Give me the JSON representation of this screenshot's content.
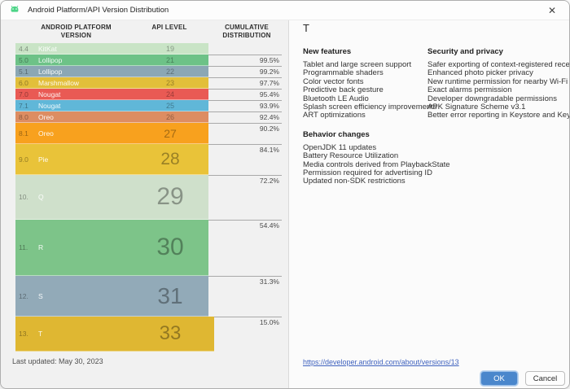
{
  "window": {
    "title": "Android Platform/API Version Distribution",
    "close_glyph": "✕"
  },
  "table": {
    "headers": {
      "platform": "ANDROID PLATFORM VERSION",
      "api": "API LEVEL",
      "cumulative": "CUMULATIVE DISTRIBUTION"
    },
    "rows": [
      {
        "version": "4.4",
        "name": "KitKat",
        "api": "19",
        "pct": "",
        "color": "#c9e4c6",
        "height": 14,
        "selected": false
      },
      {
        "version": "5.0",
        "name": "Lollipop",
        "api": "21",
        "pct": "99.5%",
        "color": "#6dc287",
        "height": 14,
        "selected": false
      },
      {
        "version": "5.1",
        "name": "Lollipop",
        "api": "22",
        "pct": "99.2%",
        "color": "#8ba7b4",
        "height": 14,
        "selected": false
      },
      {
        "version": "6.0",
        "name": "Marshmallow",
        "api": "23",
        "pct": "97.7%",
        "color": "#e2bf3a",
        "height": 14,
        "selected": false
      },
      {
        "version": "7.0",
        "name": "Nougat",
        "api": "24",
        "pct": "95.4%",
        "color": "#e95a54",
        "height": 14,
        "selected": false
      },
      {
        "version": "7.1",
        "name": "Nougat",
        "api": "25",
        "pct": "93.9%",
        "color": "#60b7d8",
        "height": 14,
        "selected": false
      },
      {
        "version": "8.0",
        "name": "Oreo",
        "api": "26",
        "pct": "92.4%",
        "color": "#dd8d62",
        "height": 14,
        "selected": false
      },
      {
        "version": "8.1",
        "name": "Oreo",
        "api": "27",
        "pct": "90.2%",
        "color": "#f8a11e",
        "height": 26,
        "selected": false
      },
      {
        "version": "9.0",
        "name": "Pie",
        "api": "28",
        "pct": "84.1%",
        "color": "#e9c339",
        "height": 38,
        "selected": false
      },
      {
        "version": "10.",
        "name": "Q",
        "api": "29",
        "pct": "72.2%",
        "color": "#cfe0cb",
        "height": 55,
        "selected": false
      },
      {
        "version": "11.",
        "name": "R",
        "api": "30",
        "pct": "54.4%",
        "color": "#7dc489",
        "height": 69,
        "selected": false
      },
      {
        "version": "12.",
        "name": "S",
        "api": "31",
        "pct": "31.3%",
        "color": "#92aab8",
        "height": 50,
        "selected": false
      },
      {
        "version": "13.",
        "name": "T",
        "api": "33",
        "pct": "15.0%",
        "color": "#dfb732",
        "height": 43,
        "selected": true
      }
    ],
    "last_updated": "Last updated: May 30, 2023"
  },
  "detail": {
    "title": "T",
    "sections": [
      {
        "heading": "New features",
        "column": 1,
        "items": [
          "Tablet and large screen support",
          "Programmable shaders",
          "Color vector fonts",
          "Predictive back gesture",
          "Bluetooth LE Audio",
          "Splash screen efficiency improvements",
          "ART optimizations"
        ]
      },
      {
        "heading": "Behavior changes",
        "column": 1,
        "items": [
          "OpenJDK 11 updates",
          "Battery Resource Utilization",
          "Media controls derived from PlaybackState",
          "Permission required for advertising ID",
          "Updated non-SDK restrictions"
        ]
      },
      {
        "heading": "Security and privacy",
        "column": 2,
        "items": [
          "Safer exporting of context-registered receivers",
          "Enhanced photo picker privacy",
          "New runtime permission for nearby Wi-Fi devices",
          "Exact alarms permission",
          "Developer downgradable permissions",
          "APK Signature Scheme v3.1",
          "Better error reporting in Keystore and KeyMint"
        ]
      }
    ],
    "link": "https://developer.android.com/about/versions/13"
  },
  "footer": {
    "ok_label": "OK",
    "cancel_label": "Cancel"
  },
  "colors": {
    "accent_blue": "#4a87cc",
    "link_blue": "#4063bf",
    "android_green": "#4cd487"
  }
}
